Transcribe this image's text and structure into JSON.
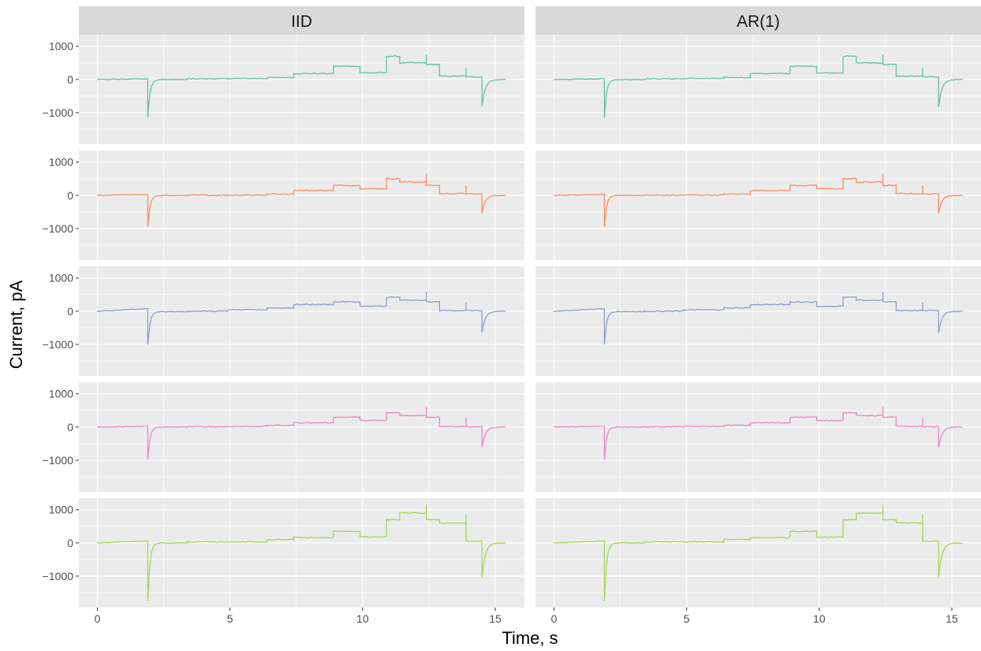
{
  "chart_data": {
    "type": "line",
    "facet_columns": [
      "IID",
      "AR(1)"
    ],
    "xlabel": "Time, s",
    "ylabel": "Current, pA",
    "xlim": [
      -0.7,
      16.1
    ],
    "ylim": [
      -1950,
      1350
    ],
    "x_ticks": [
      0,
      5,
      10,
      15
    ],
    "y_ticks": [
      -1000,
      0,
      1000
    ],
    "x_tick_labels": [
      "0",
      "5",
      "10",
      "15"
    ],
    "y_tick_labels": [
      "−1000",
      "0",
      "1000"
    ],
    "grid": true,
    "panel_background": "#ebebeb",
    "strip_background": "#d9d9d9",
    "grid_color": "#ffffff",
    "x_step_boundaries": [
      1.9,
      3.4,
      4.9,
      6.4,
      7.4,
      8.9,
      9.9,
      10.9,
      11.4,
      12.4,
      12.9,
      13.9,
      14.5,
      15.4
    ],
    "rows": [
      {
        "color": "#66c2a5",
        "segment_levels": [
          20,
          0,
          20,
          30,
          60,
          180,
          400,
          200,
          700,
          500,
          450,
          100,
          80,
          0
        ],
        "spike_min_iid": -1150,
        "spike_min_ar1": -1150,
        "end_min_iid": -820,
        "end_min_ar1": -830
      },
      {
        "color": "#fc8d62",
        "segment_levels": [
          30,
          0,
          5,
          10,
          40,
          150,
          300,
          200,
          500,
          400,
          300,
          50,
          40,
          0
        ],
        "spike_min_iid": -960,
        "spike_min_ar1": -960,
        "end_min_iid": -530,
        "end_min_ar1": -530
      },
      {
        "color": "#8da0cb",
        "segment_levels": [
          80,
          -10,
          0,
          40,
          100,
          200,
          280,
          150,
          420,
          330,
          280,
          20,
          20,
          0
        ],
        "spike_min_iid": -1000,
        "spike_min_ar1": -1000,
        "end_min_iid": -650,
        "end_min_ar1": -650
      },
      {
        "color": "#e78ac3",
        "segment_levels": [
          20,
          0,
          10,
          20,
          50,
          130,
          300,
          200,
          430,
          350,
          300,
          20,
          10,
          0
        ],
        "spike_min_iid": -980,
        "spike_min_ar1": -980,
        "end_min_iid": -620,
        "end_min_ar1": -620
      },
      {
        "color": "#a6d854",
        "segment_levels": [
          60,
          0,
          30,
          30,
          100,
          160,
          350,
          180,
          700,
          900,
          700,
          600,
          50,
          0
        ],
        "spike_min_iid": -1750,
        "spike_min_ar1": -1750,
        "end_min_iid": -1060,
        "end_min_ar1": -1060
      }
    ]
  }
}
